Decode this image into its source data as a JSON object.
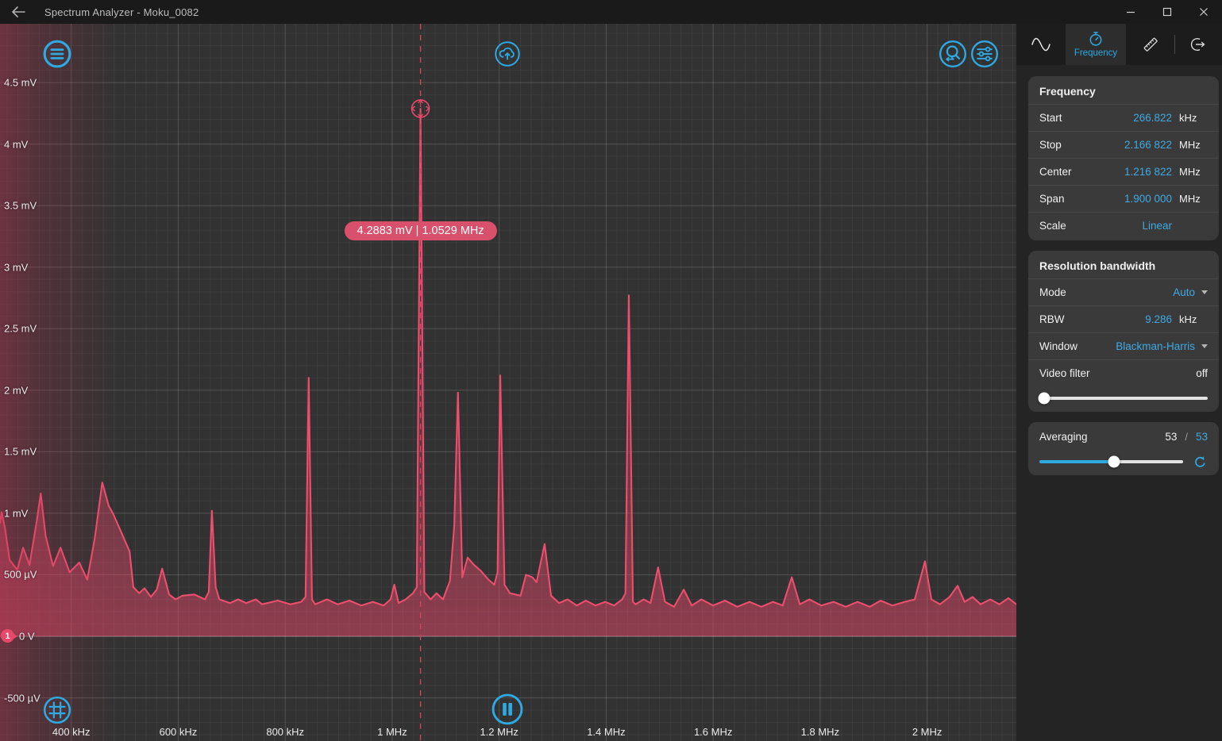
{
  "titlebar": {
    "title": "Spectrum Analyzer - Moku_0082"
  },
  "colors": {
    "accent": "#2ea9e2",
    "trace": "#ee4e6e",
    "pill": "#d8506c",
    "badge": "#e8486a",
    "value_blue": "#3fa9e0"
  },
  "icons": {
    "titlebar": [
      "back-arrow-icon",
      "minimize-icon",
      "maximize-icon",
      "close-icon"
    ],
    "chart": [
      "menu-icon",
      "cloud-upload-icon",
      "zoom-search-icon",
      "display-settings-icon",
      "grid-icon",
      "pause-icon",
      "marker-crosshair-icon"
    ],
    "sidebar_tabs": [
      "waveform-icon",
      "stopwatch-icon",
      "ruler-icon",
      "output-icon"
    ],
    "misc": [
      "refresh-icon",
      "dropdown-caret-icon"
    ]
  },
  "marker": {
    "label": "4.2883 mV | 1.0529 MHz",
    "amplitude_mV": 4.2883,
    "frequency_MHz": 1.0529
  },
  "channel_badge": {
    "number": "1"
  },
  "sidebar": {
    "tabs": [
      {
        "id": "waveform",
        "label": ""
      },
      {
        "id": "frequency",
        "label": "Frequency",
        "active": true
      },
      {
        "id": "measure",
        "label": ""
      },
      {
        "id": "output",
        "label": ""
      }
    ],
    "frequency_panel": {
      "title": "Frequency",
      "rows": [
        {
          "label": "Start",
          "value": "266.822",
          "unit": "kHz"
        },
        {
          "label": "Stop",
          "value": "2.166 822",
          "unit": "MHz"
        },
        {
          "label": "Center",
          "value": "1.216 822",
          "unit": "MHz"
        },
        {
          "label": "Span",
          "value": "1.900 000",
          "unit": "MHz"
        },
        {
          "label": "Scale",
          "value": "Linear",
          "unit": ""
        }
      ]
    },
    "rbw_panel": {
      "title": "Resolution bandwidth",
      "mode_label": "Mode",
      "mode_value": "Auto",
      "rbw_label": "RBW",
      "rbw_value": "9.286",
      "rbw_unit": "kHz",
      "window_label": "Window",
      "window_value": "Blackman-Harris",
      "video_filter_label": "Video filter",
      "video_filter_value": "off",
      "video_filter_slider_pos": 0.03
    },
    "averaging_panel": {
      "label": "Averaging",
      "current": "53",
      "separator": "/",
      "target": "53",
      "slider_pos": 0.52
    }
  },
  "chart_data": {
    "type": "line",
    "x_unit": "MHz",
    "y_unit": "mV",
    "xlim": [
      0.266822,
      2.166822
    ],
    "ylim": [
      -0.851,
      4.978
    ],
    "grid": {
      "x_minor_step": 0.02,
      "y_minor_step": 0.1
    },
    "x_ticks": [
      {
        "value": 0.4,
        "label": "400 kHz"
      },
      {
        "value": 0.6,
        "label": "600 kHz"
      },
      {
        "value": 0.8,
        "label": "800 kHz"
      },
      {
        "value": 1.0,
        "label": "1 MHz"
      },
      {
        "value": 1.2,
        "label": "1.2 MHz"
      },
      {
        "value": 1.4,
        "label": "1.4 MHz"
      },
      {
        "value": 1.6,
        "label": "1.6 MHz"
      },
      {
        "value": 1.8,
        "label": "1.8 MHz"
      },
      {
        "value": 2.0,
        "label": "2 MHz"
      }
    ],
    "y_ticks": [
      {
        "value": 4.5,
        "label": "4.5 mV"
      },
      {
        "value": 4.0,
        "label": "4 mV"
      },
      {
        "value": 3.5,
        "label": "3.5 mV"
      },
      {
        "value": 3.0,
        "label": "3 mV"
      },
      {
        "value": 2.5,
        "label": "2.5 mV"
      },
      {
        "value": 2.0,
        "label": "2 mV"
      },
      {
        "value": 1.5,
        "label": "1.5 mV"
      },
      {
        "value": 1.0,
        "label": "1 mV"
      },
      {
        "value": 0.5,
        "label": "500 µV"
      },
      {
        "value": 0.0,
        "label": "0 V"
      },
      {
        "value": -0.5,
        "label": "-500 µV"
      }
    ],
    "series": [
      {
        "name": "channel-1",
        "color": "#ee4e6e",
        "points": [
          [
            0.2668,
            0.92
          ],
          [
            0.27,
            1.01
          ],
          [
            0.276,
            0.88
          ],
          [
            0.285,
            0.62
          ],
          [
            0.299,
            0.54
          ],
          [
            0.31,
            0.72
          ],
          [
            0.322,
            0.58
          ],
          [
            0.336,
            0.95
          ],
          [
            0.343,
            1.16
          ],
          [
            0.352,
            0.82
          ],
          [
            0.366,
            0.57
          ],
          [
            0.38,
            0.72
          ],
          [
            0.397,
            0.52
          ],
          [
            0.415,
            0.6
          ],
          [
            0.43,
            0.46
          ],
          [
            0.444,
            0.8
          ],
          [
            0.458,
            1.25
          ],
          [
            0.47,
            1.06
          ],
          [
            0.479,
            0.99
          ],
          [
            0.492,
            0.86
          ],
          [
            0.509,
            0.69
          ],
          [
            0.516,
            0.4
          ],
          [
            0.527,
            0.35
          ],
          [
            0.537,
            0.39
          ],
          [
            0.549,
            0.32
          ],
          [
            0.56,
            0.38
          ],
          [
            0.57,
            0.55
          ],
          [
            0.583,
            0.34
          ],
          [
            0.595,
            0.3
          ],
          [
            0.608,
            0.33
          ],
          [
            0.63,
            0.34
          ],
          [
            0.65,
            0.3
          ],
          [
            0.657,
            0.36
          ],
          [
            0.663,
            1.02
          ],
          [
            0.67,
            0.4
          ],
          [
            0.677,
            0.3
          ],
          [
            0.697,
            0.27
          ],
          [
            0.712,
            0.3
          ],
          [
            0.727,
            0.27
          ],
          [
            0.745,
            0.3
          ],
          [
            0.757,
            0.26
          ],
          [
            0.786,
            0.29
          ],
          [
            0.81,
            0.26
          ],
          [
            0.83,
            0.28
          ],
          [
            0.838,
            0.32
          ],
          [
            0.844,
            2.1
          ],
          [
            0.85,
            0.3
          ],
          [
            0.856,
            0.26
          ],
          [
            0.878,
            0.3
          ],
          [
            0.898,
            0.26
          ],
          [
            0.92,
            0.29
          ],
          [
            0.942,
            0.25
          ],
          [
            0.964,
            0.28
          ],
          [
            0.984,
            0.25
          ],
          [
            0.997,
            0.3
          ],
          [
            1.004,
            0.42
          ],
          [
            1.012,
            0.27
          ],
          [
            1.025,
            0.3
          ],
          [
            1.039,
            0.35
          ],
          [
            1.046,
            0.4
          ],
          [
            1.0529,
            4.2883
          ],
          [
            1.06,
            0.36
          ],
          [
            1.072,
            0.3
          ],
          [
            1.083,
            0.35
          ],
          [
            1.095,
            0.3
          ],
          [
            1.108,
            0.45
          ],
          [
            1.116,
            0.9
          ],
          [
            1.123,
            1.98
          ],
          [
            1.131,
            0.48
          ],
          [
            1.141,
            0.64
          ],
          [
            1.153,
            0.58
          ],
          [
            1.166,
            0.53
          ],
          [
            1.18,
            0.46
          ],
          [
            1.191,
            0.42
          ],
          [
            1.197,
            0.52
          ],
          [
            1.202,
            2.12
          ],
          [
            1.21,
            0.42
          ],
          [
            1.22,
            0.35
          ],
          [
            1.24,
            0.33
          ],
          [
            1.25,
            0.5
          ],
          [
            1.262,
            0.48
          ],
          [
            1.27,
            0.44
          ],
          [
            1.285,
            0.75
          ],
          [
            1.297,
            0.33
          ],
          [
            1.312,
            0.27
          ],
          [
            1.328,
            0.3
          ],
          [
            1.345,
            0.25
          ],
          [
            1.362,
            0.29
          ],
          [
            1.38,
            0.25
          ],
          [
            1.398,
            0.28
          ],
          [
            1.415,
            0.25
          ],
          [
            1.43,
            0.3
          ],
          [
            1.436,
            0.35
          ],
          [
            1.4425,
            2.77
          ],
          [
            1.45,
            0.28
          ],
          [
            1.455,
            0.26
          ],
          [
            1.47,
            0.3
          ],
          [
            1.483,
            0.27
          ],
          [
            1.497,
            0.56
          ],
          [
            1.51,
            0.28
          ],
          [
            1.527,
            0.24
          ],
          [
            1.545,
            0.38
          ],
          [
            1.56,
            0.25
          ],
          [
            1.578,
            0.3
          ],
          [
            1.6,
            0.25
          ],
          [
            1.622,
            0.29
          ],
          [
            1.645,
            0.24
          ],
          [
            1.668,
            0.28
          ],
          [
            1.69,
            0.24
          ],
          [
            1.712,
            0.28
          ],
          [
            1.73,
            0.25
          ],
          [
            1.747,
            0.48
          ],
          [
            1.762,
            0.26
          ],
          [
            1.78,
            0.3
          ],
          [
            1.802,
            0.25
          ],
          [
            1.825,
            0.28
          ],
          [
            1.848,
            0.24
          ],
          [
            1.87,
            0.28
          ],
          [
            1.893,
            0.24
          ],
          [
            1.913,
            0.29
          ],
          [
            1.935,
            0.25
          ],
          [
            1.958,
            0.28
          ],
          [
            1.977,
            0.3
          ],
          [
            1.996,
            0.61
          ],
          [
            2.008,
            0.3
          ],
          [
            2.024,
            0.26
          ],
          [
            2.042,
            0.32
          ],
          [
            2.057,
            0.41
          ],
          [
            2.07,
            0.28
          ],
          [
            2.085,
            0.32
          ],
          [
            2.1,
            0.26
          ],
          [
            2.118,
            0.3
          ],
          [
            2.135,
            0.26
          ],
          [
            2.152,
            0.31
          ],
          [
            2.1668,
            0.26
          ]
        ]
      }
    ]
  }
}
